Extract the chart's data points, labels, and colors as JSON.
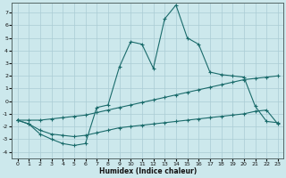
{
  "xlabel": "Humidex (Indice chaleur)",
  "bg_color": "#cce8ec",
  "grid_color": "#aaccd4",
  "line_color": "#1a6b6b",
  "x_ticks": [
    0,
    1,
    2,
    3,
    4,
    5,
    6,
    7,
    8,
    9,
    10,
    11,
    12,
    13,
    14,
    15,
    16,
    17,
    18,
    19,
    20,
    21,
    22,
    23
  ],
  "y_ticks": [
    -4,
    -3,
    -2,
    -1,
    0,
    1,
    2,
    3,
    4,
    5,
    6,
    7
  ],
  "xlim": [
    -0.5,
    23.5
  ],
  "ylim": [
    -4.5,
    7.8
  ],
  "line1_x": [
    0,
    1,
    2,
    3,
    4,
    5,
    6,
    7,
    8,
    9,
    10,
    11,
    12,
    13,
    14,
    15,
    16,
    17,
    18,
    19,
    20,
    21,
    22,
    23
  ],
  "line1_y": [
    -1.5,
    -1.8,
    -2.6,
    -3.0,
    -3.35,
    -3.5,
    -3.35,
    -0.5,
    -0.3,
    2.7,
    4.7,
    4.5,
    2.6,
    6.5,
    7.6,
    5.0,
    4.5,
    2.3,
    2.1,
    2.0,
    1.9,
    -0.4,
    -1.6,
    -1.7
  ],
  "line2_x": [
    0,
    1,
    2,
    3,
    4,
    5,
    6,
    7,
    8,
    9,
    10,
    11,
    12,
    13,
    14,
    15,
    16,
    17,
    18,
    19,
    20,
    21,
    22,
    23
  ],
  "line2_y": [
    -1.5,
    -1.5,
    -1.5,
    -1.4,
    -1.3,
    -1.2,
    -1.1,
    -0.9,
    -0.7,
    -0.5,
    -0.3,
    -0.1,
    0.1,
    0.3,
    0.5,
    0.7,
    0.9,
    1.1,
    1.3,
    1.5,
    1.7,
    1.8,
    1.9,
    2.0
  ],
  "line3_x": [
    0,
    1,
    2,
    3,
    4,
    5,
    6,
    7,
    8,
    9,
    10,
    11,
    12,
    13,
    14,
    15,
    16,
    17,
    18,
    19,
    20,
    21,
    22,
    23
  ],
  "line3_y": [
    -1.5,
    -1.8,
    -2.3,
    -2.6,
    -2.7,
    -2.8,
    -2.7,
    -2.5,
    -2.3,
    -2.1,
    -2.0,
    -1.9,
    -1.8,
    -1.7,
    -1.6,
    -1.5,
    -1.4,
    -1.3,
    -1.2,
    -1.1,
    -1.0,
    -0.8,
    -0.7,
    -1.8
  ]
}
